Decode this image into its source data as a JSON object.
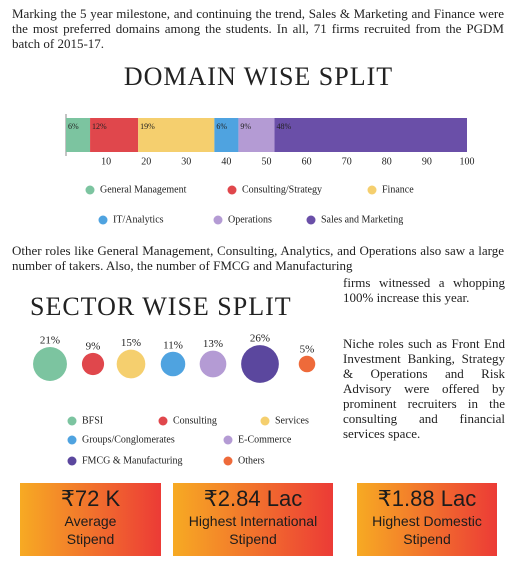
{
  "paragraphs": [
    "Marking the 5 year milestone, and continuing the trend, Sales & Marketing and Finance were the most preferred domains among the students. In all, 71 firms recruited from the PGDM batch of 2015-17.",
    "Other roles like General Management, Consulting, Analytics, and Operations also saw a large number of takers. Also, the number of FMCG and Manufacturing",
    "firms witnessed a whopping 100% increase this year.",
    "Niche roles such as Front End Investment Banking, Strategy & Operations and Risk Advisory were offered by prominent recruiters in the consulting and financial services space."
  ],
  "chart_data": [
    {
      "type": "stacked-bar",
      "title": "DOMAIN WISE SPLIT",
      "xlim": [
        0,
        100
      ],
      "xticks": [
        10,
        20,
        30,
        40,
        50,
        60,
        70,
        80,
        90,
        100
      ],
      "series": [
        {
          "name": "General Management",
          "color": "#7cc4a0",
          "values": [
            6
          ],
          "value_labels": [
            "6%"
          ]
        },
        {
          "name": "Consulting/Strategy",
          "color": "#e0474c",
          "values": [
            12
          ],
          "value_labels": [
            "12%"
          ]
        },
        {
          "name": "Finance",
          "color": "#f5cf6e",
          "values": [
            19
          ],
          "value_labels": [
            "19%"
          ]
        },
        {
          "name": "IT/Analytics",
          "color": "#4fa3e0",
          "values": [
            6
          ],
          "value_labels": [
            "6%"
          ]
        },
        {
          "name": "Operations",
          "color": "#b49bd4",
          "values": [
            9
          ],
          "value_labels": [
            "9%"
          ]
        },
        {
          "name": "Sales and Marketing",
          "color": "#6a4fa8",
          "values": [
            48
          ],
          "value_labels": [
            "48%"
          ]
        }
      ]
    },
    {
      "type": "bubble",
      "title": "SECTOR WISE SPLIT",
      "categories": [
        "BFSI",
        "Consulting",
        "Services",
        "Groups/Conglomerates",
        "E-Commerce",
        "FMCG & Manufacturing",
        "Others"
      ],
      "values": [
        21,
        9,
        15,
        11,
        13,
        26,
        5
      ],
      "value_labels": [
        "21%",
        "9%",
        "15%",
        "11%",
        "13%",
        "26%",
        "5%"
      ],
      "colors": [
        "#7cc4a0",
        "#e0474c",
        "#f5cf6e",
        "#4fa3e0",
        "#b49bd4",
        "#5b479e",
        "#ee6a3a"
      ]
    }
  ],
  "stats": [
    {
      "value": "₹72 K",
      "label": "Average Stipend"
    },
    {
      "value": "₹2.84 Lac",
      "label": "Highest International Stipend"
    },
    {
      "value": "₹1.88 Lac",
      "label": "Highest Domestic Stipend"
    }
  ]
}
